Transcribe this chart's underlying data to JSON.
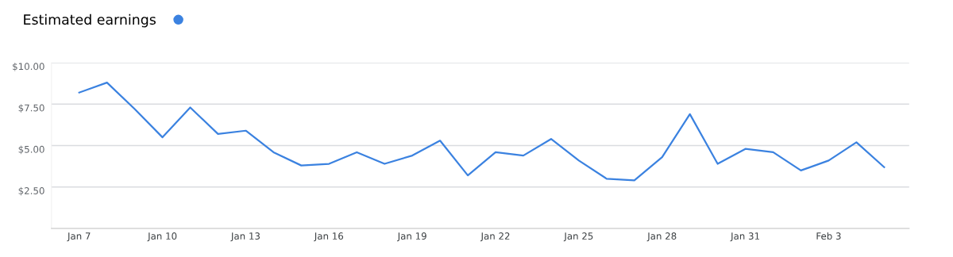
{
  "chart_data": {
    "type": "line",
    "categories": [
      "Jan 7",
      null,
      null,
      "Jan 10",
      null,
      null,
      "Jan 13",
      null,
      null,
      "Jan 16",
      null,
      null,
      "Jan 19",
      null,
      null,
      "Jan 22",
      null,
      null,
      "Jan 25",
      null,
      null,
      "Jan 28",
      null,
      null,
      "Jan 31",
      null,
      null,
      "Feb 3",
      null,
      null
    ],
    "series": [
      {
        "name": "Estimated earnings",
        "color": "#3b82e0",
        "values": [
          8.2,
          8.8,
          7.2,
          5.5,
          7.3,
          5.7,
          5.9,
          4.6,
          3.8,
          3.9,
          4.6,
          3.9,
          4.4,
          5.3,
          3.2,
          4.6,
          4.4,
          5.4,
          4.1,
          3.0,
          2.9,
          4.3,
          6.9,
          3.9,
          4.8,
          4.6,
          3.5,
          4.1,
          5.2,
          3.7
        ]
      }
    ],
    "ylim": [
      0,
      10
    ],
    "yticks": [
      {
        "value": 2.5,
        "label": "$2.50"
      },
      {
        "value": 5,
        "label": "$5.00"
      },
      {
        "value": 7.5,
        "label": "$7.50"
      },
      {
        "value": 10,
        "label": "$10.00"
      }
    ],
    "grid": "y",
    "legend": "top left",
    "marker": "none",
    "line_style": "solid"
  }
}
